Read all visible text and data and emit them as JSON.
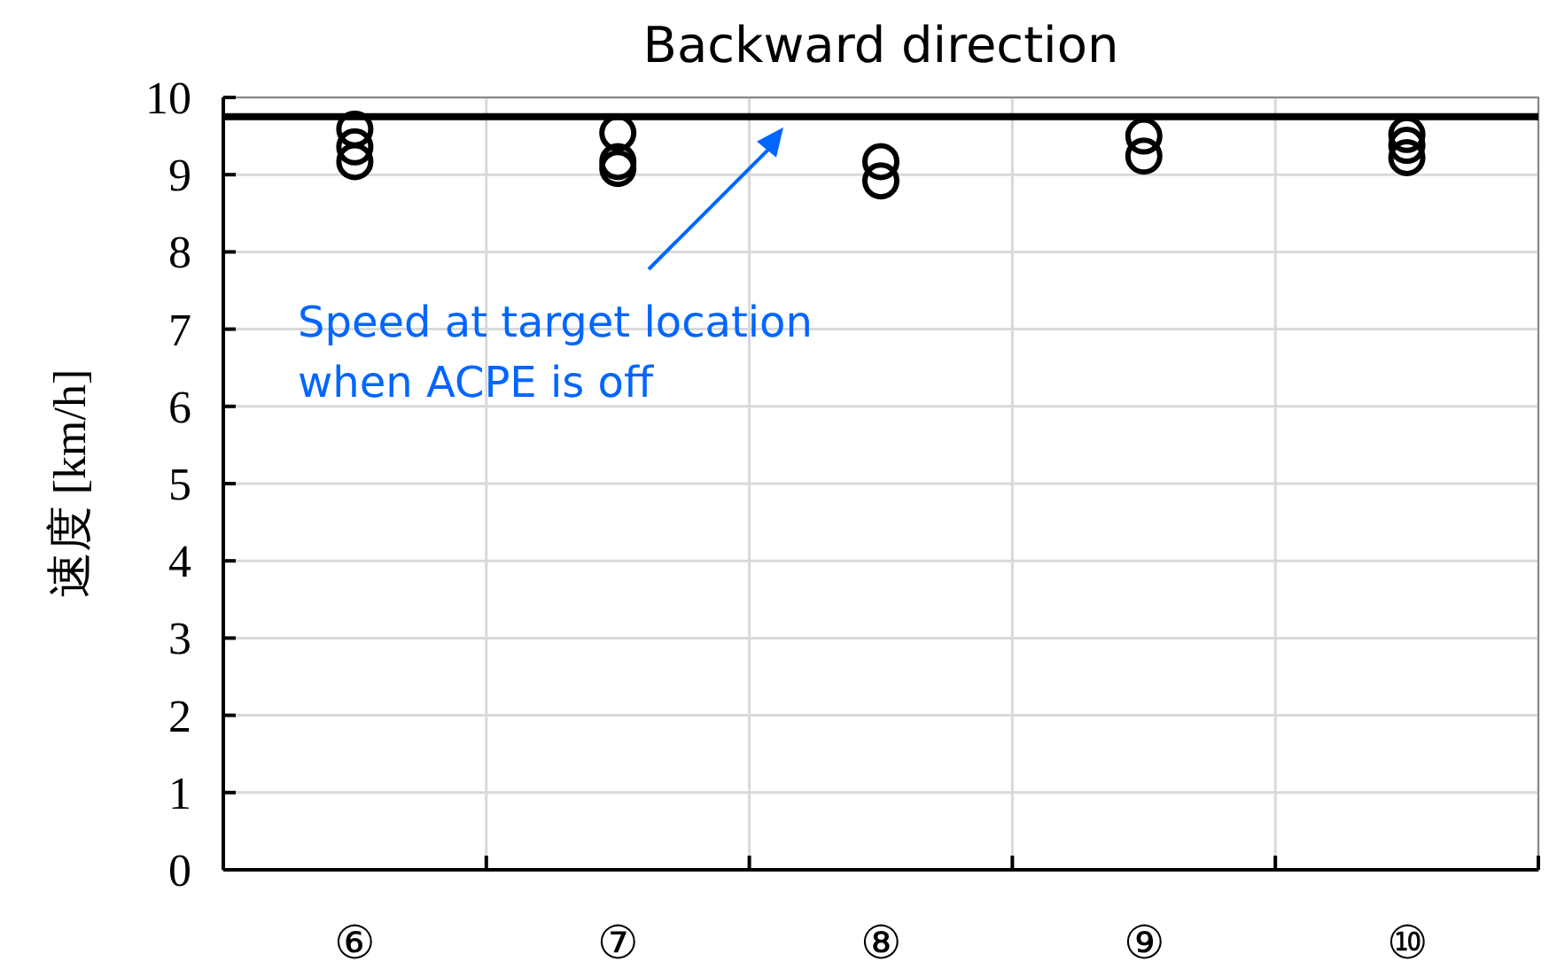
{
  "chart_data": {
    "type": "scatter",
    "title": "Backward direction",
    "ylabel": "速度 [km/h]",
    "categories": [
      "⑥",
      "⑦",
      "⑧",
      "⑨",
      "⑩"
    ],
    "series": [
      {
        "color": "#000000",
        "x": [
          "⑥",
          "⑥",
          "⑥",
          "⑦",
          "⑦",
          "⑦",
          "⑧",
          "⑧",
          "⑨",
          "⑨",
          "⑩",
          "⑩",
          "⑩"
        ],
        "values": [
          9.59,
          9.36,
          9.17,
          9.54,
          9.17,
          9.08,
          9.17,
          8.92,
          9.5,
          9.24,
          9.52,
          9.38,
          9.22
        ]
      }
    ],
    "ylim": [
      0,
      10
    ],
    "yticks": [
      0,
      1,
      2,
      3,
      4,
      5,
      6,
      7,
      8,
      9,
      10
    ],
    "ref_lines": [
      {
        "axis": "y",
        "value": 9.75,
        "color": "#000000"
      }
    ],
    "annotations": [
      "Speed at target location when ACPE is off"
    ],
    "grid": true,
    "marker": "circle"
  }
}
